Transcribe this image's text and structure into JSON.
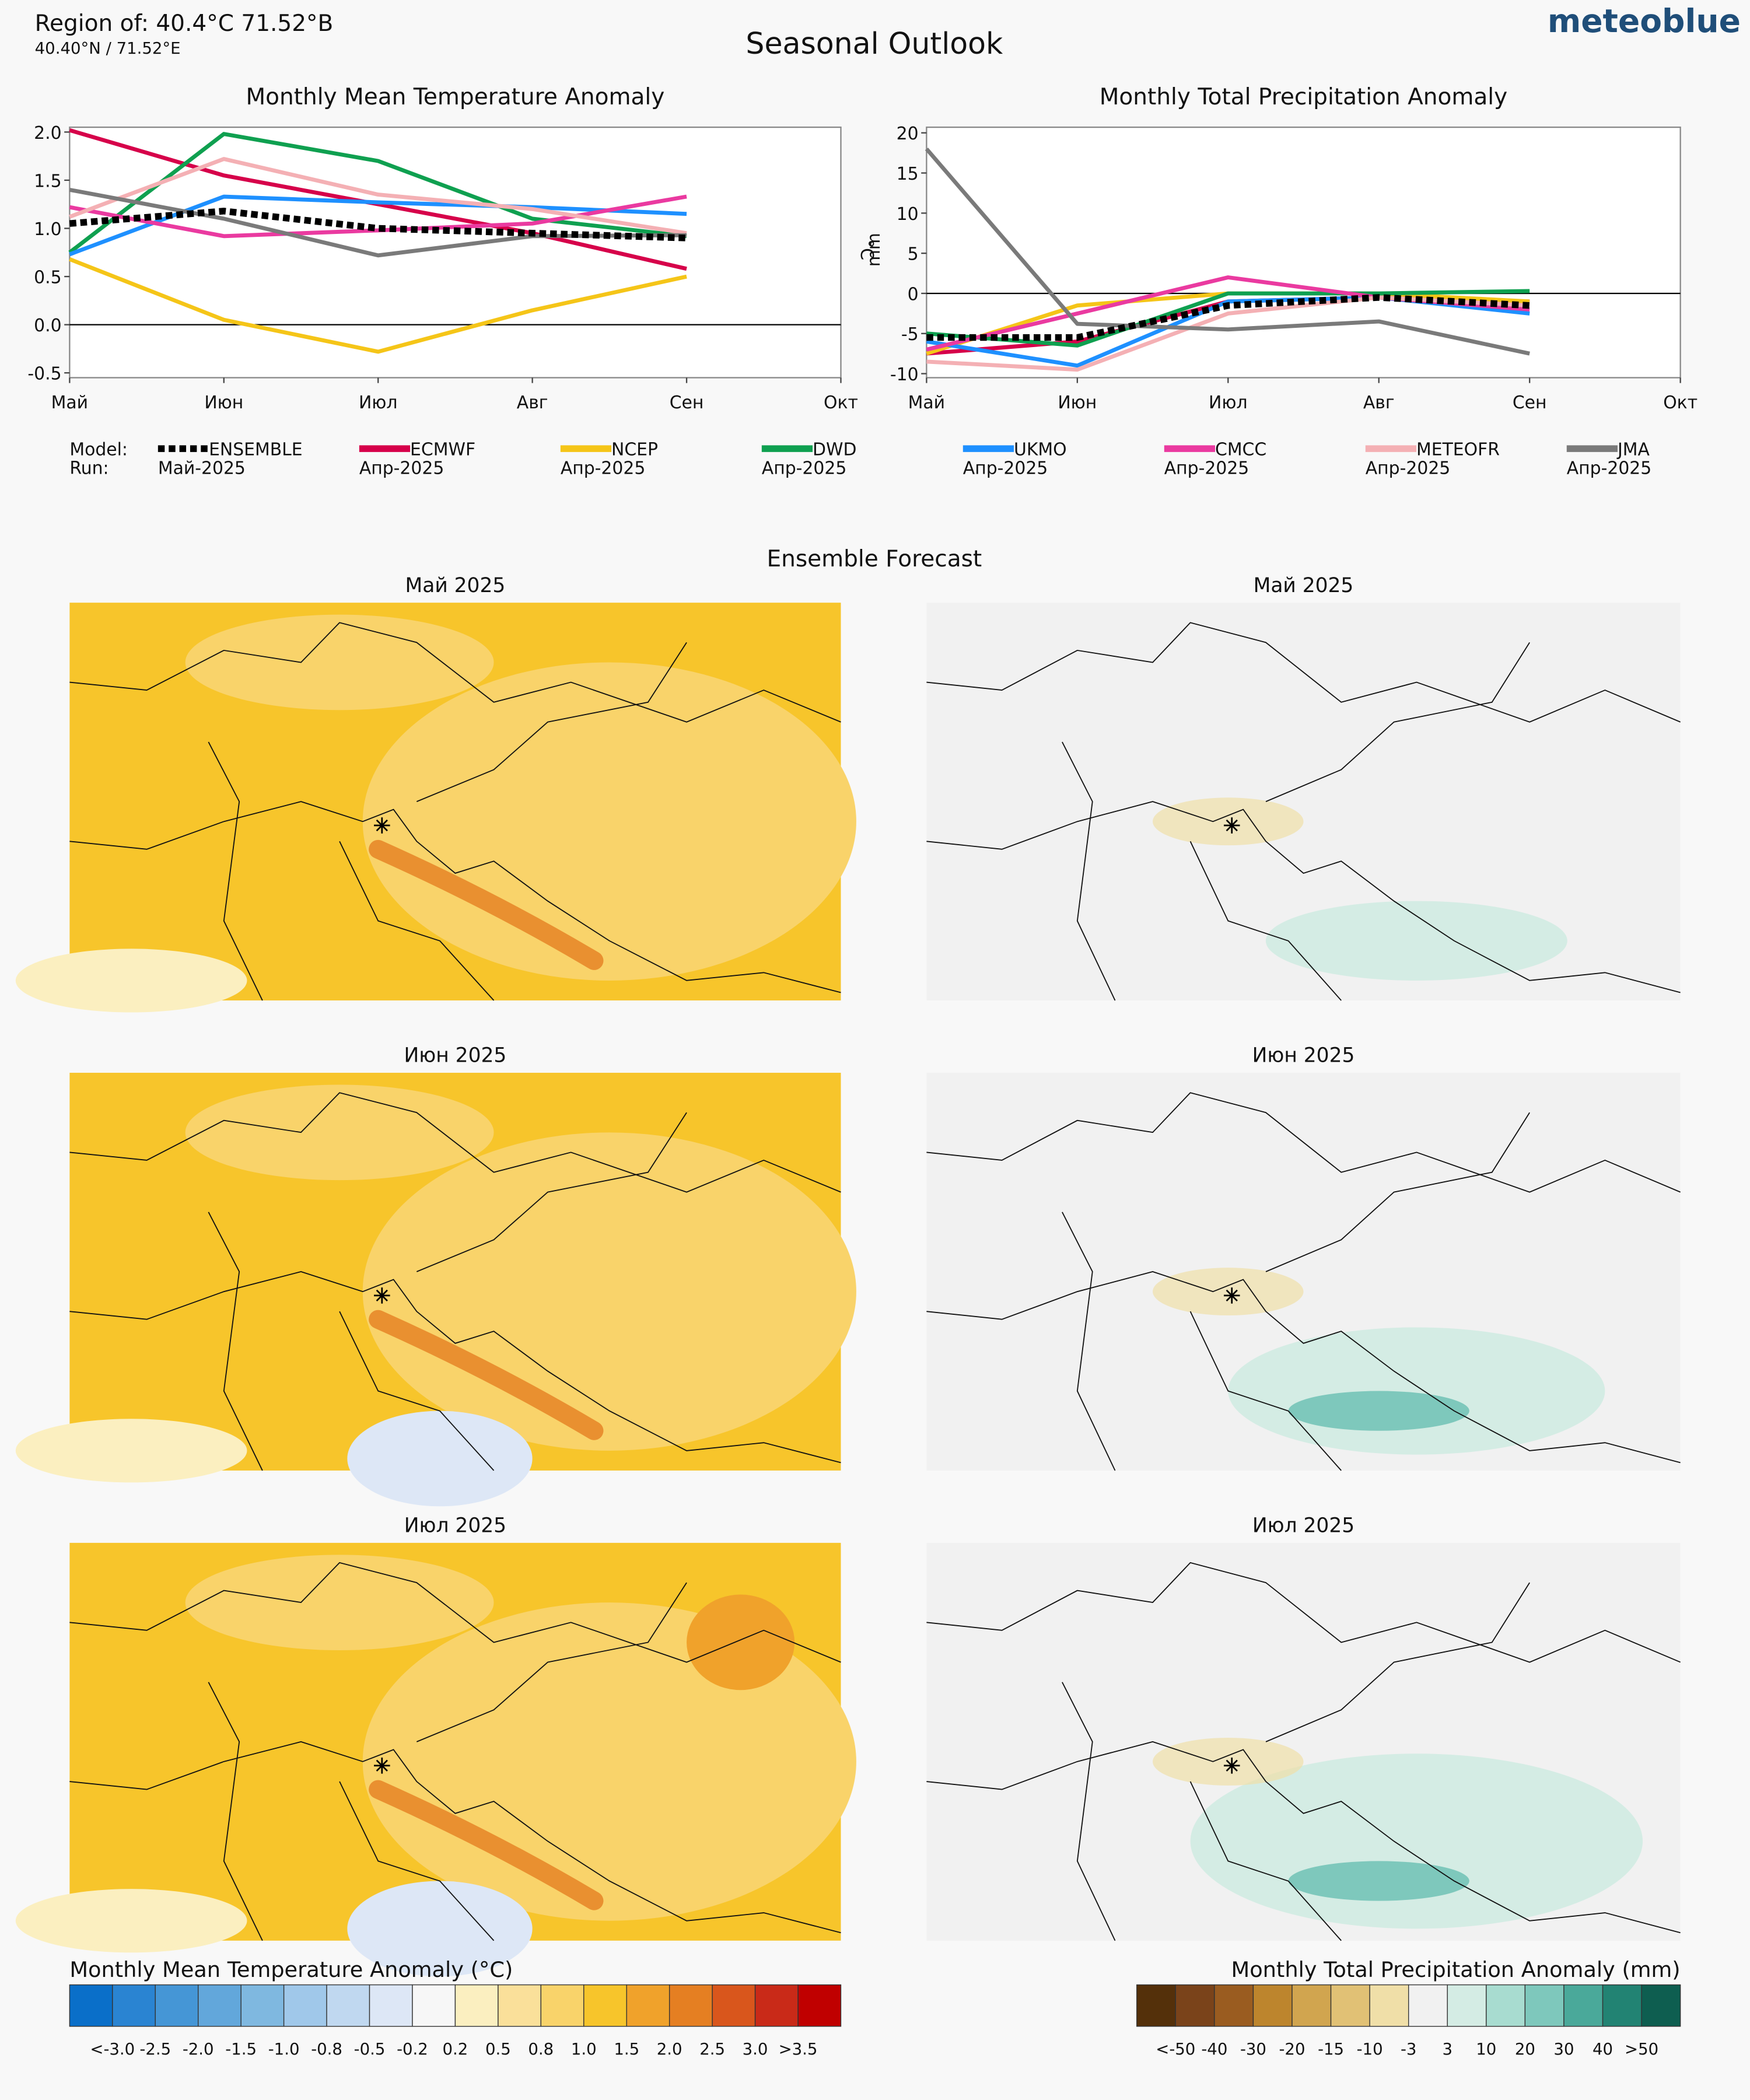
{
  "header": {
    "region": "Region of: 40.4°C 71.52°B",
    "coords": "40.40°N / 71.52°E",
    "title": "Seasonal Outlook",
    "brand": "meteoblue"
  },
  "chart_data": [
    {
      "type": "line",
      "title": "Monthly Mean Temperature Anomaly",
      "categories": [
        "Май",
        "Июн",
        "Июл",
        "Авг",
        "Сен",
        "Окт"
      ],
      "ylim": [
        -0.55,
        2.05
      ],
      "yticks": [
        -0.5,
        {
          "value": 0,
          "label": "0.0"
        },
        0.5,
        {
          "value": 1,
          "label": "1.0"
        },
        1.5,
        {
          "value": 2,
          "label": "2.0"
        }
      ],
      "series": [
        {
          "name": "ENSEMBLE",
          "run": "Май-2025",
          "color": "#000000",
          "dashed": true,
          "values": [
            1.05,
            1.18,
            1.0,
            0.95,
            0.9,
            null
          ]
        },
        {
          "name": "ECMWF",
          "run": "Апр-2025",
          "color": "#d6004a",
          "values": [
            2.02,
            1.55,
            1.25,
            0.95,
            0.58,
            null
          ]
        },
        {
          "name": "NCEP",
          "run": "Апр-2025",
          "color": "#f5c518",
          "values": [
            0.68,
            0.05,
            -0.28,
            0.15,
            0.5,
            null
          ]
        },
        {
          "name": "DWD",
          "run": "Апр-2025",
          "color": "#0fa050",
          "values": [
            0.75,
            1.98,
            1.7,
            1.1,
            0.92,
            null
          ]
        },
        {
          "name": "UKMO",
          "run": "Апр-2025",
          "color": "#1e90ff",
          "values": [
            0.73,
            1.33,
            1.27,
            1.22,
            1.15,
            null
          ]
        },
        {
          "name": "CMCC",
          "run": "Апр-2025",
          "color": "#ea3aa0",
          "values": [
            1.22,
            0.92,
            0.98,
            1.05,
            1.33,
            null
          ]
        },
        {
          "name": "METEOFR",
          "run": "Апр-2025",
          "color": "#f4b0b4",
          "values": [
            1.12,
            1.72,
            1.35,
            1.2,
            0.95,
            null
          ]
        },
        {
          "name": "JMA",
          "run": "Апр-2025",
          "color": "#7a7a7a",
          "values": [
            1.4,
            1.1,
            0.72,
            0.92,
            0.93,
            null
          ]
        }
      ]
    },
    {
      "type": "line",
      "title": "Monthly Total Precipitation Anomaly",
      "ylabel": "°C",
      "ylabel2": "mm",
      "categories": [
        "Май",
        "Июн",
        "Июл",
        "Авг",
        "Сен",
        "Окт"
      ],
      "ylim": [
        -10.5,
        20.7
      ],
      "yticks": [
        -10,
        -5,
        0,
        5,
        10,
        15,
        20
      ],
      "series": [
        {
          "values": [
            -5.5,
            -5.5,
            -1.5,
            -0.5,
            -1.5,
            null
          ]
        },
        {
          "values": [
            -7.5,
            -6,
            -1,
            -0.5,
            -1,
            null
          ]
        },
        {
          "values": [
            -7.5,
            -1.5,
            0,
            0,
            -1,
            null
          ]
        },
        {
          "values": [
            -5,
            -6.5,
            0,
            0,
            0.3,
            null
          ]
        },
        {
          "values": [
            -6,
            -9,
            -1,
            -0.5,
            -2.5,
            null
          ]
        },
        {
          "values": [
            -7,
            -2.5,
            2,
            -0.5,
            -2,
            null
          ]
        },
        {
          "values": [
            -8.5,
            -9.5,
            -2.5,
            -0.5,
            -1.5,
            null
          ]
        },
        {
          "values": [
            18,
            -3.8,
            -4.5,
            -3.5,
            -7.5,
            null
          ]
        }
      ]
    }
  ],
  "legend": {
    "model_label": "Model:",
    "run_label": "Run:"
  },
  "maps": {
    "title": "Ensemble Forecast",
    "months": [
      "Май 2025",
      "Июн 2025",
      "Июл 2025"
    ]
  },
  "colorbars": [
    {
      "title": "Monthly Mean Temperature Anomaly (°C)",
      "colors": [
        "#0a6fc9",
        "#2a84d2",
        "#4596d6",
        "#62a7db",
        "#7fb8e0",
        "#a0c8ea",
        "#c0d8f0",
        "#dde7f6",
        "#f7f7f7",
        "#fbefc0",
        "#fae09a",
        "#f9d36a",
        "#f7c52b",
        "#f0a22b",
        "#e57f22",
        "#d9561c",
        "#c92a18",
        "#c00000"
      ],
      "labels": [
        "<-3.0",
        "-2.5",
        "-2.0",
        "-1.5",
        "-1.0",
        "-0.8",
        "-0.5",
        "-0.2",
        "0.2",
        "0.5",
        "0.8",
        "1.0",
        "1.5",
        "2.0",
        "2.5",
        "3.0",
        ">3.5"
      ]
    },
    {
      "title": "Monthly Total Precipitation Anomaly (mm)",
      "colors": [
        "#54300a",
        "#7a431a",
        "#9a5c20",
        "#bd852d",
        "#d1a54f",
        "#e1c175",
        "#f0dfa8",
        "#f1f1f1",
        "#d4ece4",
        "#a8dcd0",
        "#7ec8bc",
        "#4aa99a",
        "#228373",
        "#0e5e50"
      ],
      "labels": [
        "<-50",
        "-40",
        "-30",
        "-20",
        "-15",
        "-10",
        "-3",
        "3",
        "10",
        "20",
        "30",
        "40",
        ">50"
      ]
    }
  ]
}
